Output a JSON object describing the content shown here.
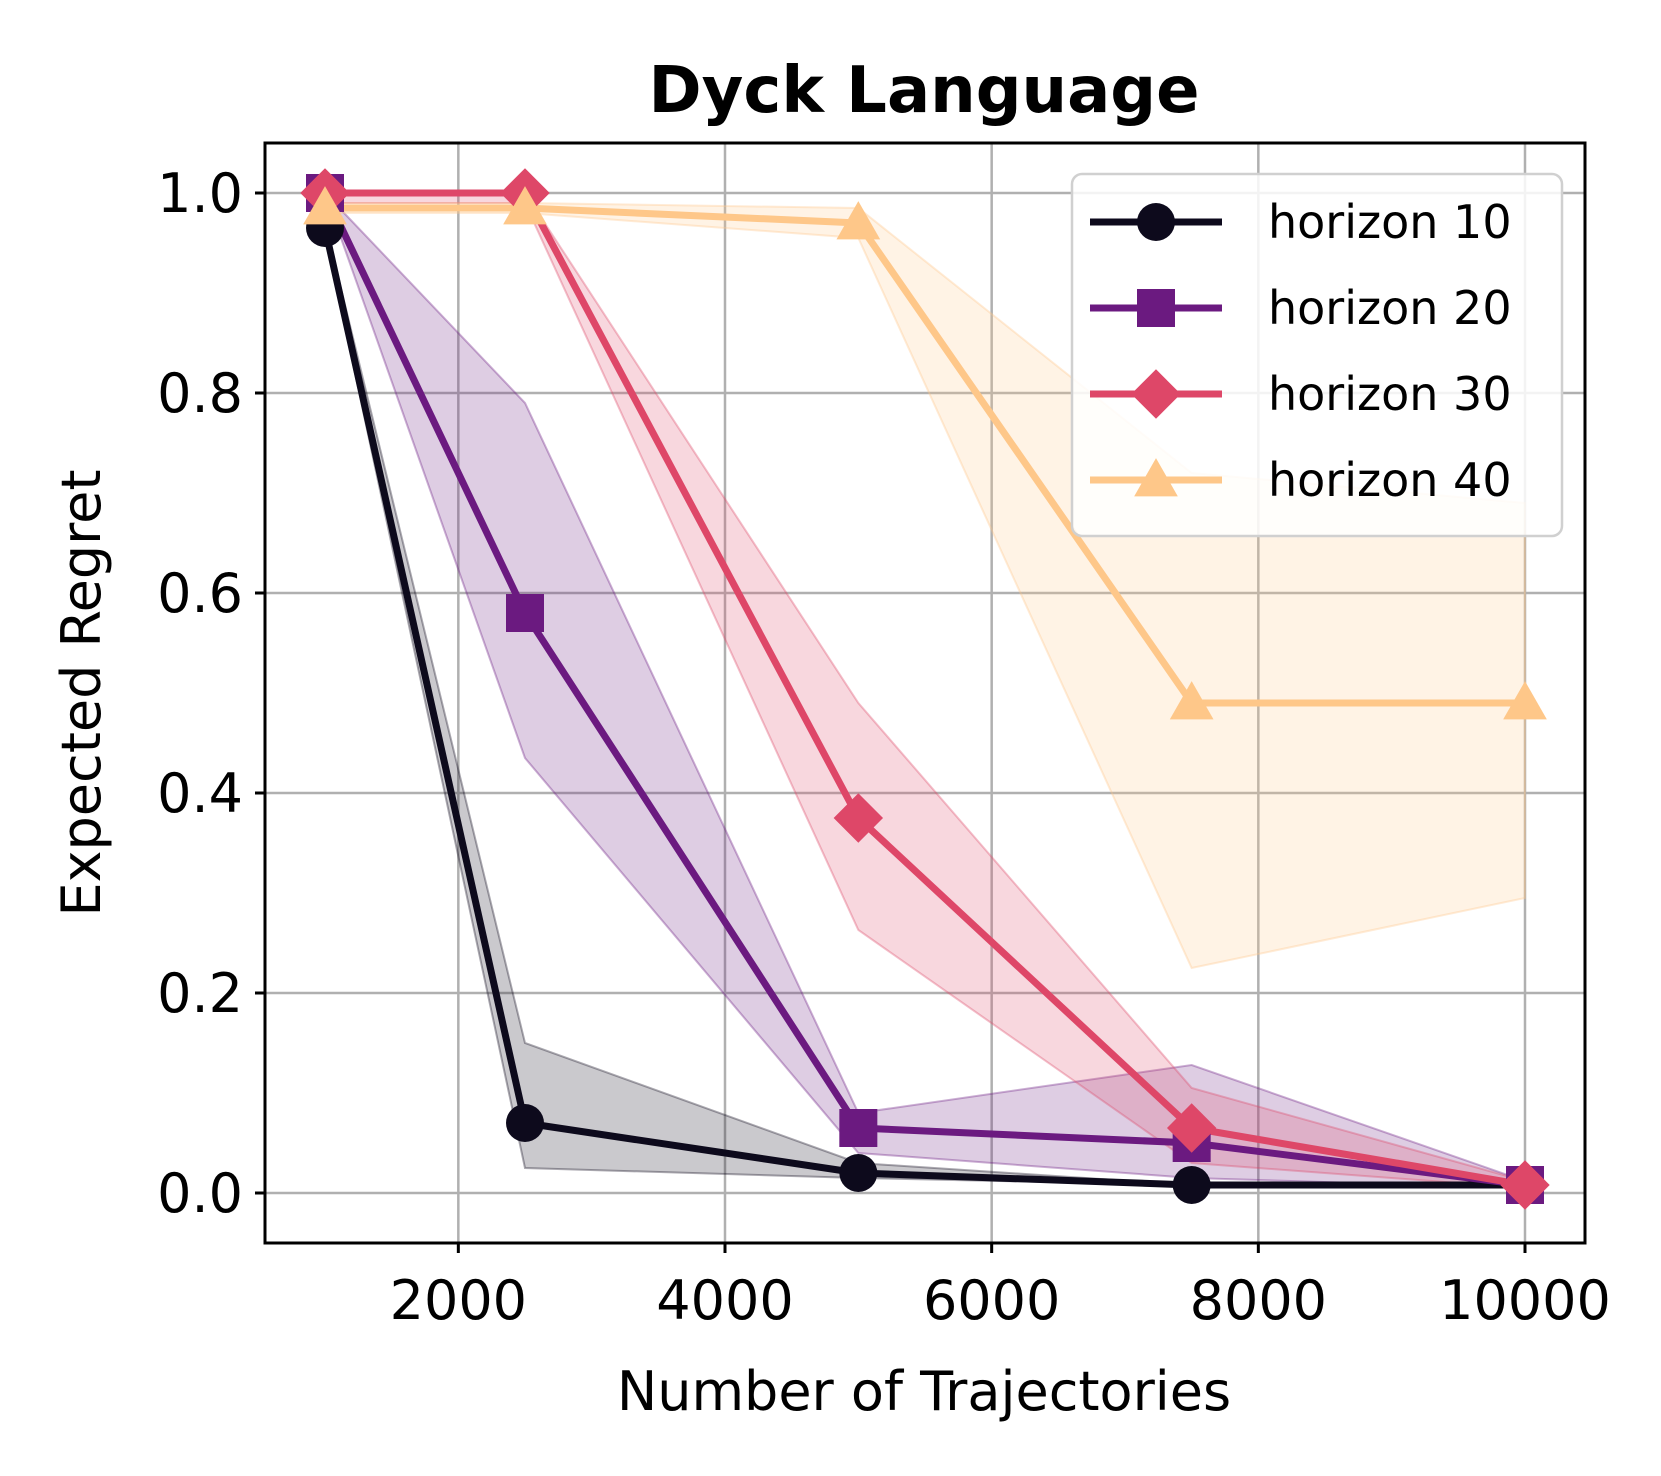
{
  "chart_data": {
    "type": "line",
    "title": "Dyck Language",
    "xlabel": "Number of Trajectories",
    "ylabel": "Expected Regret",
    "xlim": [
      550,
      10450
    ],
    "ylim": [
      -0.05,
      1.05
    ],
    "xticks": [
      2000,
      4000,
      6000,
      8000,
      10000
    ],
    "xtick_labels": [
      "2000",
      "4000",
      "6000",
      "8000",
      "10000"
    ],
    "yticks": [
      0.0,
      0.2,
      0.4,
      0.6,
      0.8,
      1.0
    ],
    "ytick_labels": [
      "0.0",
      "0.2",
      "0.4",
      "0.6",
      "0.8",
      "1.0"
    ],
    "grid": true,
    "legend_position": "top-right",
    "x": [
      1000,
      2500,
      5000,
      7500,
      10000
    ],
    "series": [
      {
        "name": "horizon 10",
        "color": "#0d0a1c",
        "marker": "circle",
        "values": [
          0.965,
          0.07,
          0.02,
          0.008,
          0.008
        ],
        "lower": [
          0.96,
          0.025,
          0.015,
          0.008,
          0.008
        ],
        "upper": [
          0.97,
          0.15,
          0.03,
          0.008,
          0.008
        ]
      },
      {
        "name": "horizon 20",
        "color": "#6b1a80",
        "marker": "square",
        "values": [
          1.0,
          0.58,
          0.065,
          0.05,
          0.008
        ],
        "lower": [
          1.0,
          0.435,
          0.04,
          0.015,
          0.005
        ],
        "upper": [
          1.0,
          0.79,
          0.08,
          0.128,
          0.012
        ]
      },
      {
        "name": "horizon 30",
        "color": "#de4768",
        "marker": "diamond",
        "values": [
          1.0,
          1.0,
          0.375,
          0.065,
          0.008
        ],
        "lower": [
          0.99,
          0.99,
          0.263,
          0.03,
          0.005
        ],
        "upper": [
          1.0,
          1.0,
          0.49,
          0.105,
          0.012
        ]
      },
      {
        "name": "horizon 40",
        "color": "#fec789",
        "marker": "triangle",
        "values": [
          0.985,
          0.985,
          0.97,
          0.49,
          0.49
        ],
        "lower": [
          0.98,
          0.98,
          0.955,
          0.225,
          0.295
        ],
        "upper": [
          0.99,
          0.99,
          0.985,
          0.72,
          0.69
        ]
      }
    ]
  }
}
